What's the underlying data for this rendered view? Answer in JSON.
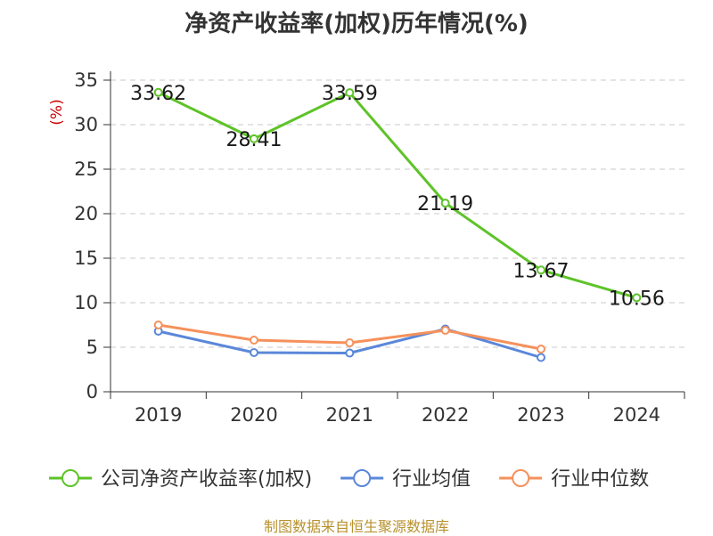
{
  "chart_data": {
    "type": "line",
    "title": "净资产收益率(加权)历年情况(%)",
    "ylabel": "(%)",
    "xlabel": "",
    "categories": [
      "2019",
      "2020",
      "2021",
      "2022",
      "2023",
      "2024"
    ],
    "ylim": [
      0,
      35
    ],
    "yticks": [
      0,
      5,
      10,
      15,
      20,
      25,
      30,
      35
    ],
    "grid": true,
    "legend_position": "bottom",
    "series": [
      {
        "name": "公司净资产收益率(加权)",
        "color": "#5ec328",
        "values": [
          33.62,
          28.41,
          33.59,
          21.19,
          13.67,
          10.56
        ],
        "labels": [
          "33.62",
          "28.41",
          "33.59",
          "21.19",
          "13.67",
          "10.56"
        ]
      },
      {
        "name": "行业均值",
        "color": "#5b87d9",
        "values": [
          6.8,
          4.4,
          4.35,
          7.05,
          3.85,
          null
        ]
      },
      {
        "name": "行业中位数",
        "color": "#f5915b",
        "values": [
          7.5,
          5.8,
          5.5,
          6.9,
          4.8,
          null
        ]
      }
    ]
  },
  "footer": {
    "source": "制图数据来自恒生聚源数据库"
  }
}
